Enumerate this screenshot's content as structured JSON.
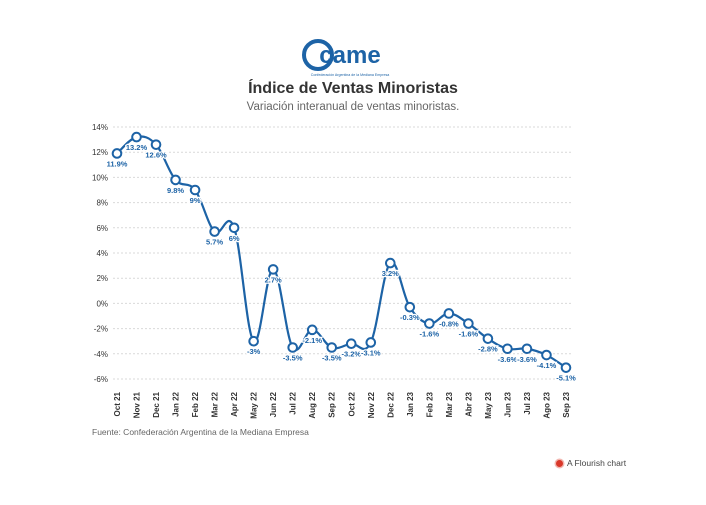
{
  "logo": {
    "text": "came",
    "caption": "Confederación Argentina de la Mediana Empresa"
  },
  "title": "Índice de Ventas Minoristas",
  "subtitle": "Variación interanual de ventas minoristas.",
  "source": "Fuente: Confederación Argentina de la Mediana Empresa",
  "credit": "A Flourish chart",
  "colors": {
    "line": "#1d63a6",
    "marker_fill": "#ffffff",
    "grid": "#d9d9d9",
    "brand_red": "#d9382a"
  },
  "chart_data": {
    "type": "line",
    "title": "Índice de Ventas Minoristas",
    "subtitle": "Variación interanual de ventas minoristas.",
    "xlabel": "",
    "ylabel": "",
    "ylim": [
      -6,
      14
    ],
    "yticks": [
      14,
      12,
      10,
      8,
      6,
      4,
      2,
      0,
      -2,
      -4,
      -6
    ],
    "ytick_labels": [
      "14%",
      "12%",
      "10%",
      "8%",
      "6%",
      "4%",
      "2%",
      "0%",
      "-2%",
      "-4%",
      "-6%"
    ],
    "grid": true,
    "legend": "none",
    "categories": [
      "Oct 21",
      "Nov 21",
      "Dec 21",
      "Jan 22",
      "Feb 22",
      "Mar 22",
      "Apr 22",
      "May 22",
      "Jun 22",
      "Jul 22",
      "Aug 22",
      "Sep 22",
      "Oct 22",
      "Nov 22",
      "Dec 22",
      "Jan 23",
      "Feb 23",
      "Mar 23",
      "Abr 23",
      "May 23",
      "Jun 23",
      "Jul 23",
      "Ago 23",
      "Sep 23"
    ],
    "series": [
      {
        "values": [
          11.9,
          13.2,
          12.6,
          9.8,
          9,
          5.7,
          6,
          -3,
          2.7,
          -3.5,
          -2.1,
          -3.5,
          -3.2,
          -3.1,
          3.2,
          -0.3,
          -1.6,
          -0.8,
          -1.6,
          -2.8,
          -3.6,
          -3.6,
          -4.1,
          -5.1
        ],
        "labels": [
          "11.9%",
          "13.2%",
          "12.6%",
          "9.8%",
          "9%",
          "5.7%",
          "6%",
          "-3%",
          "2.7%",
          "-3.5%",
          "-2.1%",
          "-3.5%",
          "-3.2%",
          "-3.1%",
          "3.2%",
          "-0.3%",
          "-1.6%",
          "-0.8%",
          "-1.6%",
          "-2.8%",
          "-3.6%",
          "-3.6%",
          "-4.1%",
          "-5.1%"
        ]
      }
    ]
  }
}
